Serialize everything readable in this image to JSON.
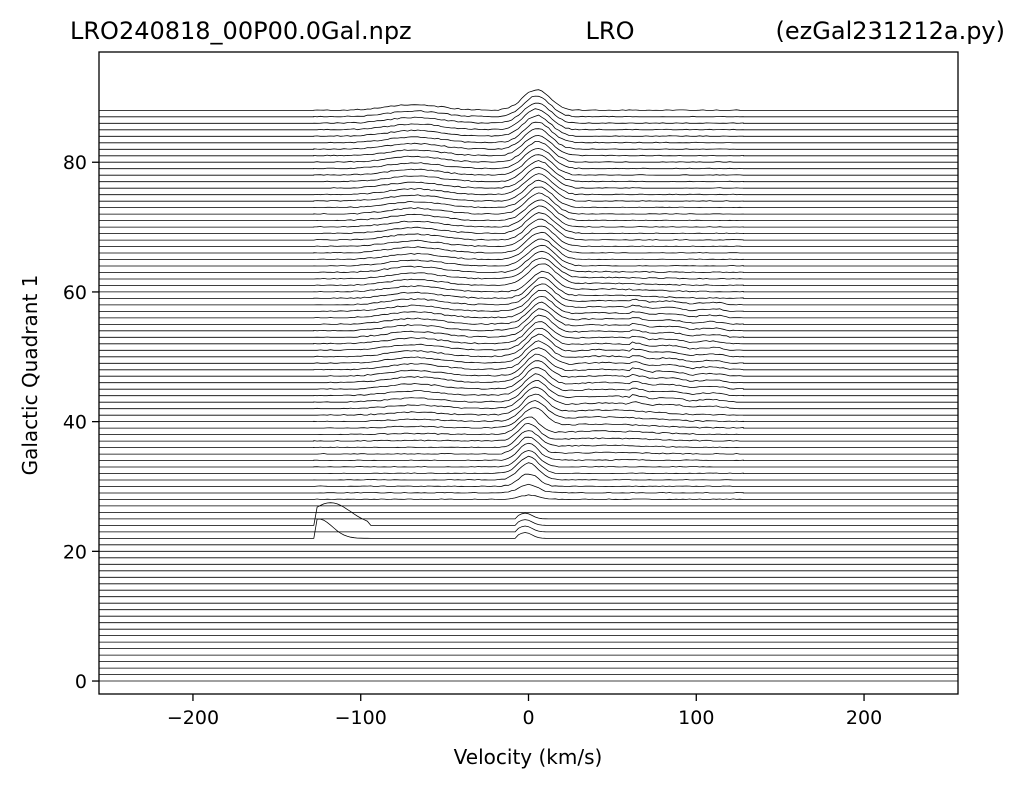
{
  "header": {
    "left": "LRO240818_00P00.0Gal.npz",
    "center": "LRO",
    "right": "(ezGal231212a.py)"
  },
  "chart_data": {
    "type": "line",
    "title": "LRO",
    "xlabel": "Velocity (km/s)",
    "ylabel": "Galactic Quadrant 1",
    "xlim": [
      -256,
      256
    ],
    "ylim": [
      -2,
      97
    ],
    "xticks": [
      -200,
      -100,
      0,
      100,
      200
    ],
    "yticks": [
      0,
      20,
      40,
      60,
      80
    ],
    "line_color": "#000000",
    "grid": false,
    "series_description": "Stacked HI velocity spectra, one trace per galactic longitude 0..88 offset by longitude; flat baselines with emission peaks near 0 km/s and -70 km/s for longitudes 28..88",
    "galactic_longitudes": {
      "start": 0,
      "end": 88,
      "step": 1
    },
    "data_velocity_range": [
      -128,
      128
    ],
    "peak_features": [
      {
        "longitude_range": [
          28,
          40
        ],
        "velocity": 0,
        "note": "strong peak near 0 km/s"
      },
      {
        "longitude_range": [
          40,
          66
        ],
        "velocity": 8,
        "note": "main peak at positive velocity with broad wing to +80 km/s"
      },
      {
        "longitude_range": [
          66,
          88
        ],
        "velocity": 4,
        "note": "peak near 0-5 km/s with secondary hump near -70 km/s"
      },
      {
        "longitude_range": [
          22,
          25
        ],
        "velocity": -118,
        "note": "isolated artifact near -120 km/s"
      }
    ]
  }
}
